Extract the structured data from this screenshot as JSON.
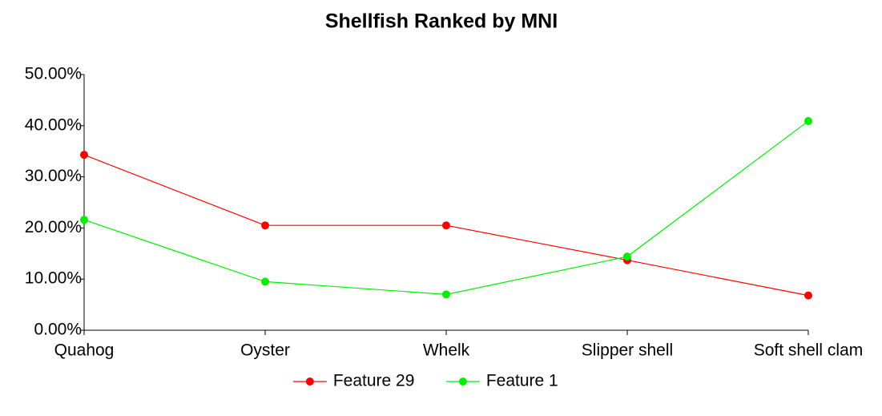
{
  "chart_data": {
    "type": "line",
    "title": "Shellfish Ranked by MNI",
    "categories": [
      "Quahog",
      "Oyster",
      "Whelk",
      "Slipper shell",
      "Soft shell clam"
    ],
    "series": [
      {
        "name": "Feature 29",
        "color": "#ff0000",
        "values": [
          34.3,
          20.5,
          20.5,
          13.7,
          6.8
        ]
      },
      {
        "name": "Feature 1",
        "color": "#00ee00",
        "values": [
          21.6,
          9.5,
          7.0,
          14.4,
          40.9
        ]
      }
    ],
    "ylim": [
      0,
      50
    ],
    "yticks": [
      {
        "value": 0,
        "label": "0.00%"
      },
      {
        "value": 10,
        "label": "10.00%"
      },
      {
        "value": 20,
        "label": "20.00%"
      },
      {
        "value": 30,
        "label": "30.00%"
      },
      {
        "value": 40,
        "label": "40.00%"
      },
      {
        "value": 50,
        "label": "50.00%"
      }
    ],
    "legend": "bottom"
  }
}
